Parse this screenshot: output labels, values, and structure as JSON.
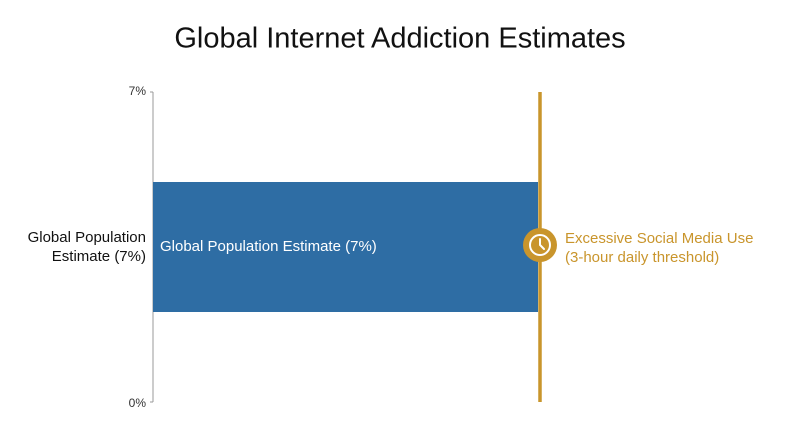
{
  "chart_data": {
    "type": "bar",
    "orientation": "horizontal",
    "title": "Global Internet Addiction Estimates",
    "categories": [
      "Global Population Estimate (7%)"
    ],
    "values": [
      7
    ],
    "value_labels": [
      "Global Population Estimate (7%)"
    ],
    "color": "#2e6da4",
    "ylim": [
      0,
      7
    ],
    "yticks": [
      {
        "value": 0,
        "label": "0%"
      },
      {
        "value": 7,
        "label": "7%"
      }
    ],
    "threshold": {
      "value": 7,
      "labels": [
        "Excessive Social Media Use",
        "(3-hour daily threshold)"
      ],
      "color": "#c9952c"
    }
  }
}
